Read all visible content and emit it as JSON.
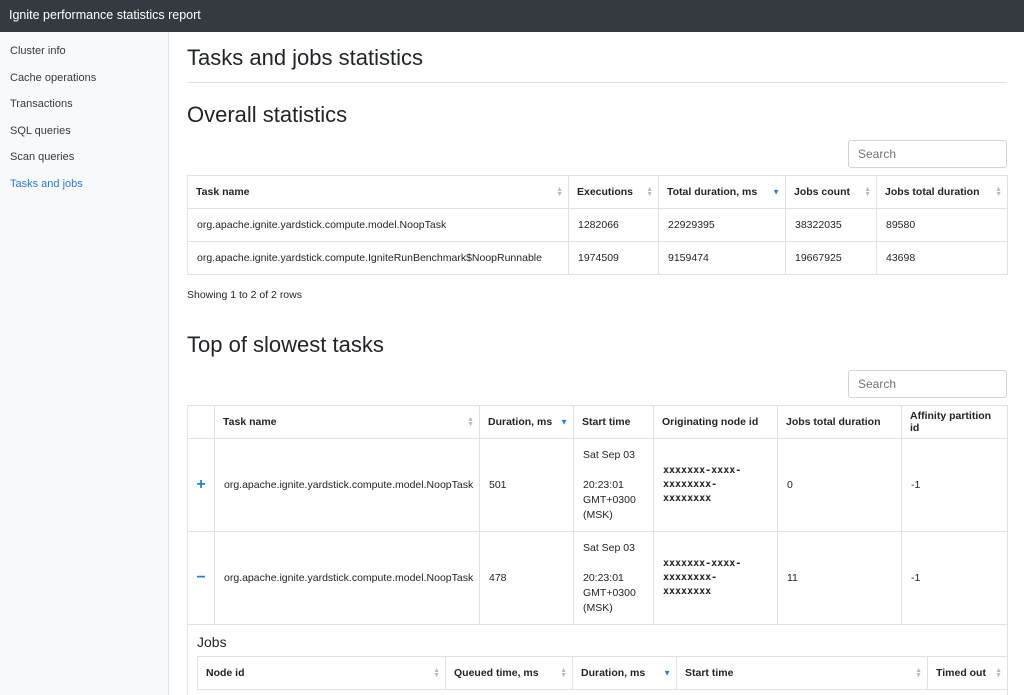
{
  "app": {
    "title": "Ignite performance statistics report"
  },
  "sidebar": {
    "items": [
      {
        "label": "Cluster info",
        "active": false
      },
      {
        "label": "Cache operations",
        "active": false
      },
      {
        "label": "Transactions",
        "active": false
      },
      {
        "label": "SQL queries",
        "active": false
      },
      {
        "label": "Scan queries",
        "active": false
      },
      {
        "label": "Tasks and jobs",
        "active": true
      }
    ]
  },
  "page": {
    "title": "Tasks and jobs statistics"
  },
  "overall": {
    "title": "Overall statistics",
    "search_placeholder": "Search",
    "columns": [
      "Task name",
      "Executions",
      "Total duration, ms",
      "Jobs count",
      "Jobs total duration"
    ],
    "sorted_column": "Total duration, ms",
    "rows": [
      [
        "org.apache.ignite.yardstick.compute.model.NoopTask",
        "1282066",
        "22929395",
        "38322035",
        "89580"
      ],
      [
        "org.apache.ignite.yardstick.compute.IgniteRunBenchmark$NoopRunnable",
        "1974509",
        "9159474",
        "19667925",
        "43698"
      ]
    ],
    "summary": "Showing 1 to 2 of 2 rows"
  },
  "slowest": {
    "title": "Top of slowest tasks",
    "search_placeholder": "Search",
    "columns": [
      "",
      "Task name",
      "Duration, ms",
      "Start time",
      "Originating node id",
      "Jobs total duration",
      "Affinity partition id"
    ],
    "sorted_column": "Duration, ms",
    "rows": [
      {
        "expander": "+",
        "task": "org.apache.ignite.yardstick.compute.model.NoopTask",
        "duration": "501",
        "start_line1": "Sat Sep 03",
        "start_line2": "20:23:01",
        "start_line3": "GMT+0300",
        "start_line4": "(MSK)",
        "node_line1": "xxxxxxx-xxxx-",
        "node_line2": "xxxxxxxx-",
        "node_line3": "xxxxxxxx",
        "jobs_total": "0",
        "partition": "-1"
      },
      {
        "expander": "−",
        "task": "org.apache.ignite.yardstick.compute.model.NoopTask",
        "duration": "478",
        "start_line1": "Sat Sep 03",
        "start_line2": "20:23:01",
        "start_line3": "GMT+0300",
        "start_line4": "(MSK)",
        "node_line1": "xxxxxxx-xxxx-",
        "node_line2": "xxxxxxxx-",
        "node_line3": "xxxxxxxx",
        "jobs_total": "11",
        "partition": "-1"
      }
    ]
  },
  "jobs": {
    "title": "Jobs",
    "columns": [
      "Node id",
      "Queued time, ms",
      "Duration, ms",
      "Start time",
      "Timed out"
    ],
    "sorted_column": "Duration, ms"
  },
  "colors": {
    "accent": "#2b7bd1",
    "topbar": "#343a40",
    "sidebar": "#f8f9fa"
  }
}
